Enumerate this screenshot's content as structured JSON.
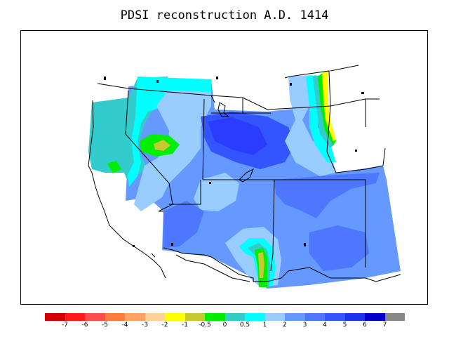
{
  "title": "PDSI reconstruction A.D. 1414",
  "legend": {
    "colors": [
      "#d40000",
      "#ff1a1a",
      "#ff4d4d",
      "#ff7a3d",
      "#ffa366",
      "#ffd199",
      "#ffff00",
      "#c8c832",
      "#00ee00",
      "#33cccc",
      "#00ffff",
      "#99ccff",
      "#6699ff",
      "#4d77ff",
      "#3355ff",
      "#1a33ee",
      "#0000cc",
      "#888888"
    ],
    "tick_labels": [
      "-7",
      "-6",
      "-5",
      "-4",
      "-3",
      "-2",
      "-1",
      "-0.5",
      "0",
      "0.5",
      "1",
      "2",
      "3",
      "4",
      "5",
      "6",
      "7"
    ]
  },
  "map": {
    "region": "Western United States",
    "palette": {
      "teal": "#33cccc",
      "cyan": "#00ffff",
      "light_blue": "#99ccff",
      "medium_blue": "#6699ff",
      "blue": "#4d77ff",
      "deep_blue": "#3355ff",
      "darkest_blue": "#2a3dff",
      "green": "#00ee00",
      "olive": "#c8c832",
      "yellow": "#ffff00"
    }
  }
}
